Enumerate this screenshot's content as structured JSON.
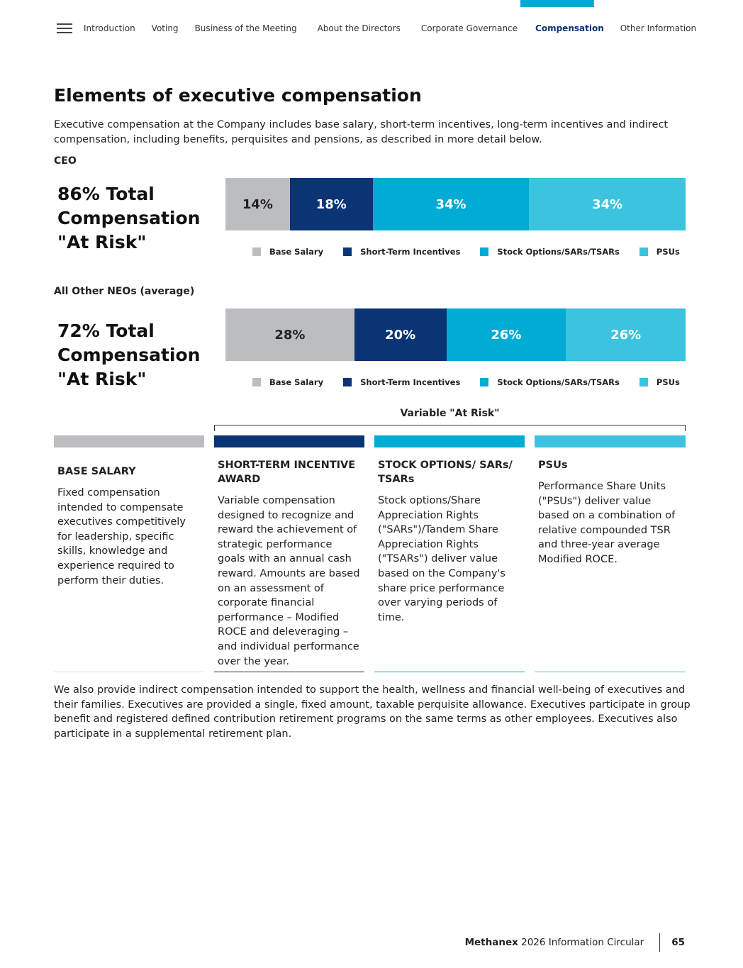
{
  "nav": {
    "items": [
      "Introduction",
      "Voting",
      "Business of the Meeting",
      "About the Directors",
      "Corporate Governance",
      "Compensation",
      "Other Information"
    ],
    "active": "Compensation"
  },
  "title": "Elements of executive compensation",
  "intro": "Executive compensation at the Company includes base salary, short-term incentives, long-term incentives and indirect compensation, including benefits, perquisites and pensions, as described in more detail below.",
  "chart_data": [
    {
      "type": "bar",
      "stacked": true,
      "group": "CEO",
      "headline": "86% Total Compensation \"At Risk\"",
      "categories": [
        "Base Salary",
        "Short-Term Incentives",
        "Stock Options/SARs/TSARs",
        "PSUs"
      ],
      "values": [
        14,
        18,
        34,
        34
      ],
      "labels": [
        "14%",
        "18%",
        "34%",
        "34%"
      ]
    },
    {
      "type": "bar",
      "stacked": true,
      "group": "All Other NEOs (average)",
      "headline": "72% Total Compensation \"At Risk\"",
      "categories": [
        "Base Salary",
        "Short-Term Incentives",
        "Stock Options/SARs/TSARs",
        "PSUs"
      ],
      "values": [
        28,
        20,
        26,
        26
      ],
      "labels": [
        "28%",
        "20%",
        "26%",
        "26%"
      ]
    }
  ],
  "colors": {
    "base": "#bcbdc0",
    "sti": "#0a3474",
    "options": "#00acd3",
    "psus": "#3bc3df"
  },
  "variable_label": "Variable \"At Risk\"",
  "columns": [
    {
      "title": "BASE SALARY",
      "text": "Fixed compensation intended to compensate executives competitively for leadership, specific skills, knowledge and experience required to perform their duties."
    },
    {
      "title": "SHORT-TERM INCENTIVE AWARD",
      "text": "Variable compensation designed to recognize and reward the achievement of strategic performance goals with an annual cash reward. Amounts are based on an assessment of corporate financial performance – Modified ROCE and deleveraging – and individual performance over the year."
    },
    {
      "title": "STOCK OPTIONS/ SARs/ TSARs",
      "text": "Stock options/Share Appreciation Rights (\"SARs\")/Tandem Share Appreciation Rights (\"TSARs\") deliver value based on the Company's share price performance over varying periods of time."
    },
    {
      "title": "PSUs",
      "text": "Performance Share Units (\"PSUs\") deliver value based on a combination of relative compounded TSR and three-year average Modified ROCE."
    }
  ],
  "outro": "We also provide indirect compensation intended to support the health, wellness and financial well-being of executives and their families. Executives are provided a single, fixed amount, taxable perquisite allowance. Executives participate in group benefit and registered defined contribution retirement programs on the same terms as other employees. Executives also participate in a supplemental retirement plan.",
  "footer": {
    "brand": "Methanex",
    "doc": "2026 Information Circular",
    "page": "65"
  }
}
